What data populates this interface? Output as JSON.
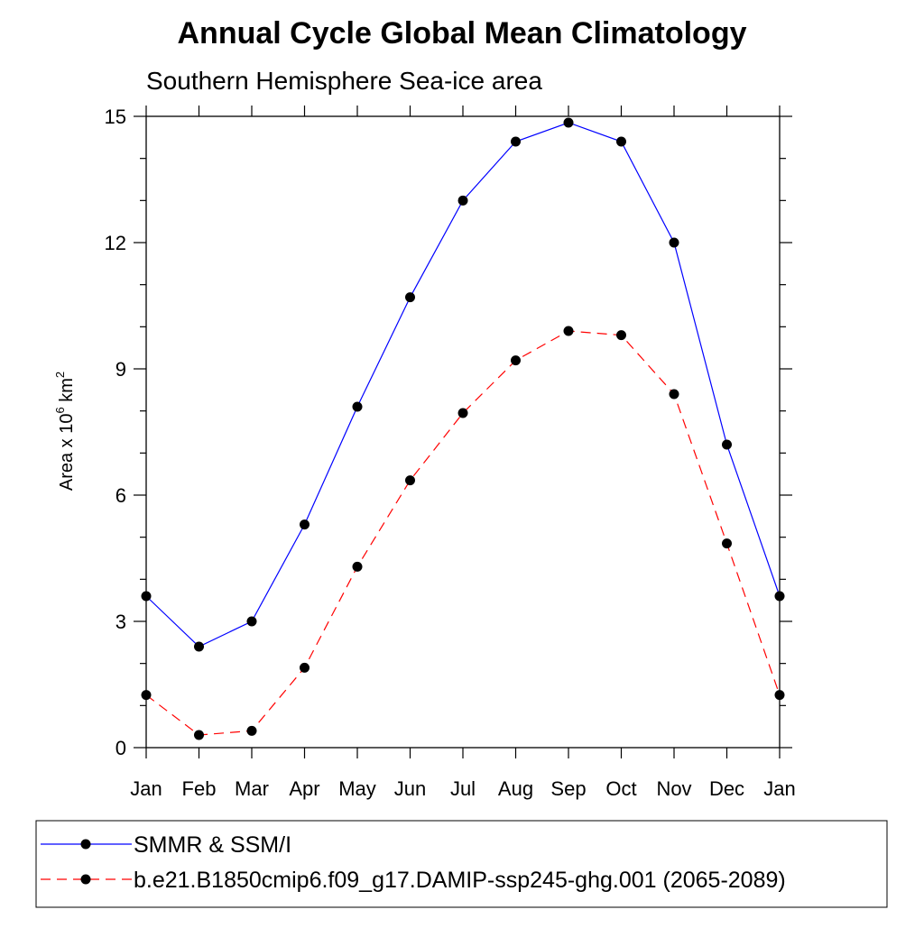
{
  "chart_data": {
    "type": "line",
    "title": "Annual Cycle Global Mean Climatology",
    "subtitle": "Southern Hemisphere Sea-ice area",
    "ylabel": {
      "base": "Area x 10",
      "exp1": "6",
      "mid": " km",
      "exp2": "2"
    },
    "xlabel": "",
    "categories": [
      "Jan",
      "Feb",
      "Mar",
      "Apr",
      "May",
      "Jun",
      "Jul",
      "Aug",
      "Sep",
      "Oct",
      "Nov",
      "Dec",
      "Jan"
    ],
    "ylim": [
      0,
      15
    ],
    "yticks": [
      0,
      3,
      6,
      9,
      12,
      15
    ],
    "ytick_labels": [
      "0",
      "3",
      "6",
      "9",
      "12",
      "15"
    ],
    "grid": false,
    "legend_position": "bottom",
    "series": [
      {
        "name": "SMMR & SSM/I",
        "color": "#0000ff",
        "style": "solid",
        "marker": "filled-circle",
        "values": [
          3.6,
          2.4,
          3.0,
          5.3,
          8.1,
          10.7,
          13.0,
          14.4,
          14.85,
          14.4,
          12.0,
          7.2,
          3.6
        ]
      },
      {
        "name": "b.e21.B1850cmip6.f09_g17.DAMIP-ssp245-ghg.001 (2065-2089)",
        "color": "#ff0000",
        "style": "dashed",
        "marker": "filled-circle",
        "values": [
          1.25,
          0.3,
          0.4,
          1.9,
          4.3,
          6.35,
          7.95,
          9.2,
          9.9,
          9.8,
          8.4,
          4.85,
          1.25
        ]
      }
    ]
  }
}
